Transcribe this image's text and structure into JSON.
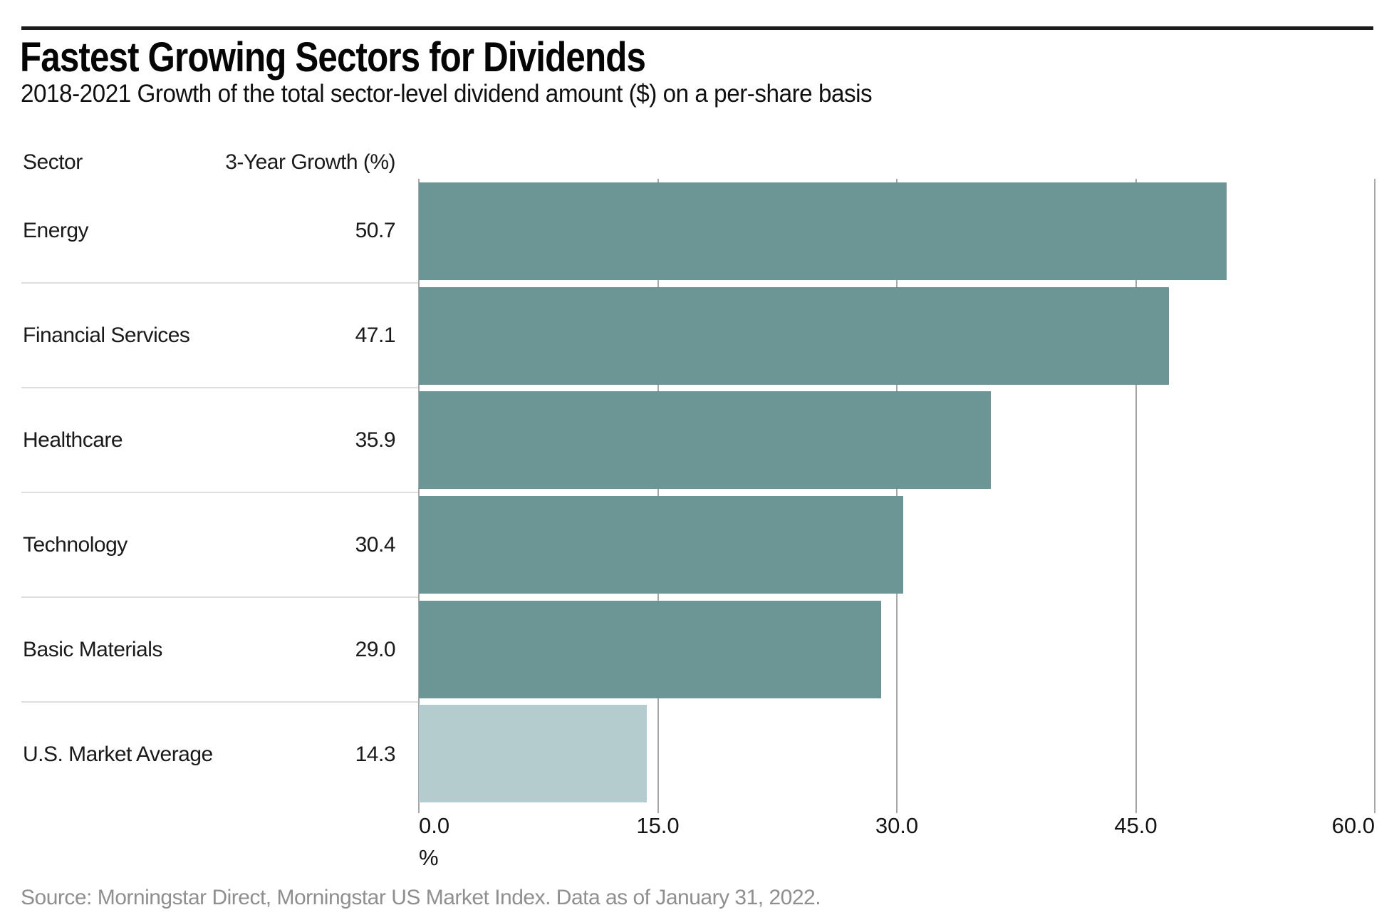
{
  "chart_data": {
    "type": "bar",
    "orientation": "horizontal",
    "title": "Fastest Growing Sectors for Dividends",
    "subtitle": "2018-2021 Growth of the total sector-level dividend amount ($) on a per-share basis",
    "table_headers": {
      "sector": "Sector",
      "growth": "3-Year Growth (%)"
    },
    "categories": [
      "Energy",
      "Financial Services",
      "Healthcare",
      "Technology",
      "Basic Materials",
      "U.S. Market Average"
    ],
    "values": [
      50.7,
      47.1,
      35.9,
      30.4,
      29.0,
      14.3
    ],
    "value_labels": [
      "50.7",
      "47.1",
      "35.9",
      "30.4",
      "29.0",
      "14.3"
    ],
    "xlim": [
      0,
      60
    ],
    "x_tick_values": [
      0,
      15,
      30,
      45,
      60
    ],
    "x_ticks": [
      "0.0",
      "15.0",
      "30.0",
      "45.0",
      "60.0"
    ],
    "xlabel": "%",
    "grid": true,
    "legend": "none",
    "bar_color": "#6b9695",
    "highlight_bar_color": "#b4cccd",
    "highlight_index": 5,
    "highlight_category": "U.S. Market Average",
    "source": "Source: Morningstar Direct, Morningstar US Market Index. Data as of January 31, 2022."
  }
}
